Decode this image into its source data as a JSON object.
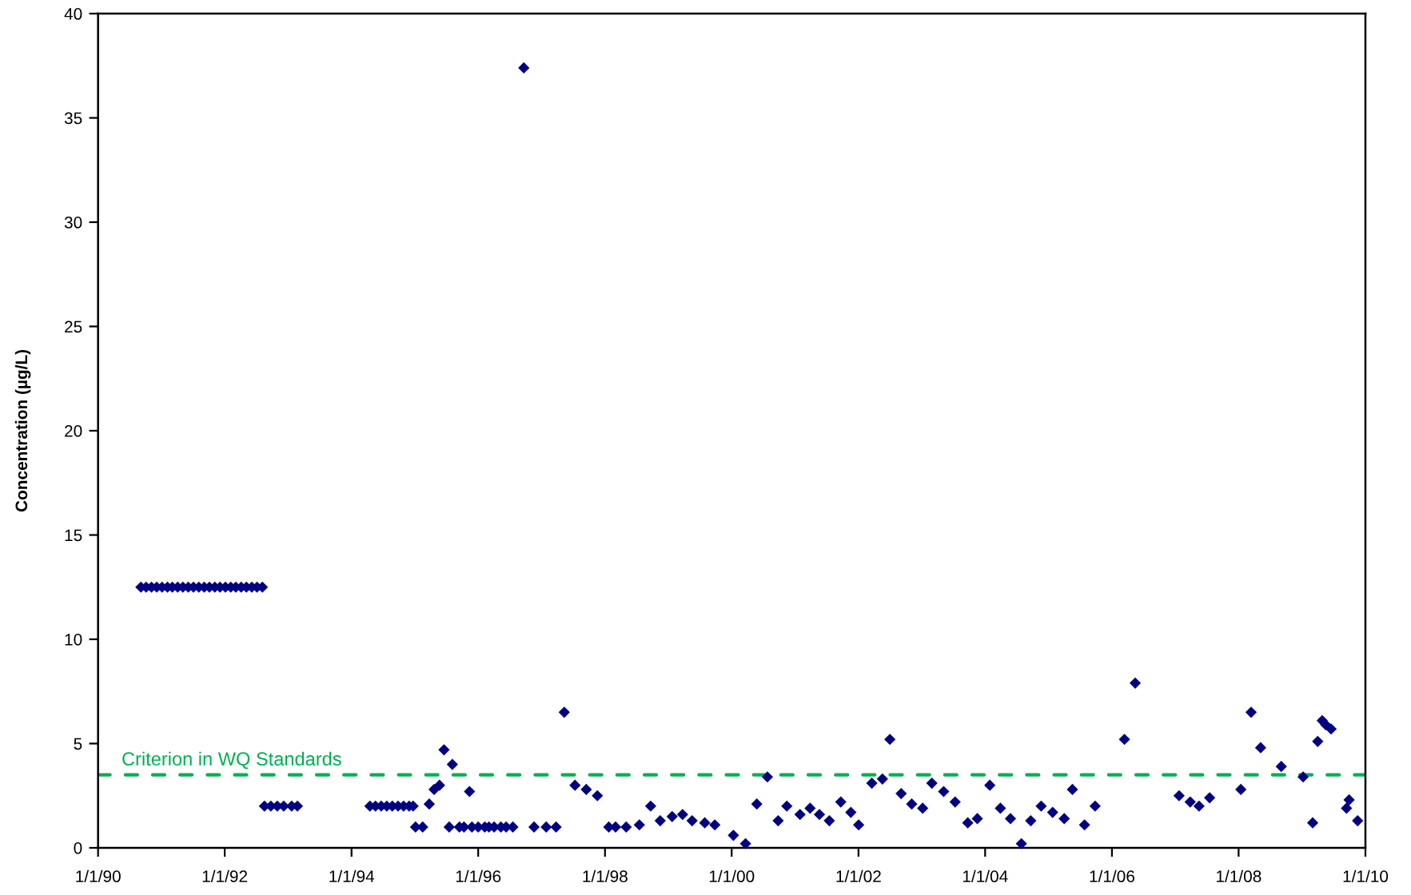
{
  "chart_data": {
    "type": "scatter",
    "ylabel": "Concentration (µg/L)",
    "marker": "diamond",
    "xlim": [
      "1990-01-01",
      "2010-01-01"
    ],
    "xticks": [
      {
        "value": "1990-01-01",
        "label": "1/1/90"
      },
      {
        "value": "1992-01-01",
        "label": "1/1/92"
      },
      {
        "value": "1994-01-01",
        "label": "1/1/94"
      },
      {
        "value": "1996-01-01",
        "label": "1/1/96"
      },
      {
        "value": "1998-01-01",
        "label": "1/1/98"
      },
      {
        "value": "2000-01-01",
        "label": "1/1/00"
      },
      {
        "value": "2002-01-01",
        "label": "1/1/02"
      },
      {
        "value": "2004-01-01",
        "label": "1/1/04"
      },
      {
        "value": "2006-01-01",
        "label": "1/1/06"
      },
      {
        "value": "2008-01-01",
        "label": "1/1/08"
      },
      {
        "value": "2010-01-01",
        "label": "1/1/10"
      }
    ],
    "ylim": [
      0,
      40
    ],
    "yticks": [
      0,
      5,
      10,
      15,
      20,
      25,
      30,
      35,
      40
    ],
    "ref_lines": [
      {
        "axis": "y",
        "value": 3.5,
        "label": "Criterion in WQ Standards",
        "color": "#00b050",
        "line_style": "dashed"
      }
    ],
    "series": [
      {
        "color": "#000080",
        "x": [
          "1990-09-05",
          "1990-10-05",
          "1990-11-05",
          "1990-12-05",
          "1991-01-05",
          "1991-02-05",
          "1991-03-05",
          "1991-04-05",
          "1991-05-05",
          "1991-06-05",
          "1991-07-05",
          "1991-08-05",
          "1991-09-05",
          "1991-10-05",
          "1991-11-05",
          "1991-12-05",
          "1992-01-05",
          "1992-02-05",
          "1992-03-05",
          "1992-04-05",
          "1992-05-05",
          "1992-06-05",
          "1992-07-05",
          "1992-08-05",
          "1992-08-17",
          "1992-09-23",
          "1992-10-30",
          "1992-12-06",
          "1993-01-21",
          "1993-02-23",
          "1994-04-17",
          "1994-05-19",
          "1994-06-21",
          "1994-07-23",
          "1994-08-24",
          "1994-09-26",
          "1994-10-28",
          "1994-11-29",
          "1994-12-22",
          "1995-01-05",
          "1995-02-15",
          "1995-03-25",
          "1995-04-22",
          "1995-05-23",
          "1995-06-18",
          "1995-07-18",
          "1995-08-05",
          "1995-09-15",
          "1995-10-11",
          "1995-11-12",
          "1995-11-26",
          "1996-01-01",
          "1996-02-08",
          "1996-03-03",
          "1996-04-02",
          "1996-05-11",
          "1996-06-10",
          "1996-07-19",
          "1996-09-20",
          "1996-11-18",
          "1997-01-27",
          "1997-03-25",
          "1997-05-11",
          "1997-07-12",
          "1997-09-15",
          "1997-11-18",
          "1998-01-23",
          "1998-03-03",
          "1998-05-03",
          "1998-07-18",
          "1998-09-21",
          "1998-11-15",
          "1999-01-23",
          "1999-03-24",
          "1999-05-18",
          "1999-07-30",
          "1999-09-26",
          "2000-01-11",
          "2000-03-21",
          "2000-05-25",
          "2000-07-25",
          "2000-09-25",
          "2000-11-14",
          "2001-01-29",
          "2001-03-28",
          "2001-05-21",
          "2001-07-17",
          "2001-09-21",
          "2001-11-18",
          "2002-01-02",
          "2002-03-19",
          "2002-05-19",
          "2002-07-01",
          "2002-09-04",
          "2002-11-04",
          "2003-01-06",
          "2003-02-28",
          "2003-05-07",
          "2003-07-12",
          "2003-09-23",
          "2003-11-17",
          "2004-01-28",
          "2004-03-29",
          "2004-05-26",
          "2004-07-28",
          "2004-09-20",
          "2004-11-19",
          "2005-01-24",
          "2005-04-01",
          "2005-05-18",
          "2005-07-27",
          "2005-09-26",
          "2006-03-14",
          "2006-05-15",
          "2007-01-23",
          "2007-03-28",
          "2007-05-18",
          "2007-07-18",
          "2008-01-14",
          "2008-03-13",
          "2008-05-07",
          "2008-09-03",
          "2009-01-07",
          "2009-03-03",
          "2009-04-01",
          "2009-04-27",
          "2009-05-17",
          "2009-06-17",
          "2009-09-14",
          "2009-09-29",
          "2009-11-17"
        ],
        "values": [
          12.5,
          12.5,
          12.5,
          12.5,
          12.5,
          12.5,
          12.5,
          12.5,
          12.5,
          12.5,
          12.5,
          12.5,
          12.5,
          12.5,
          12.5,
          12.5,
          12.5,
          12.5,
          12.5,
          12.5,
          12.5,
          12.5,
          12.5,
          12.5,
          2.0,
          2.0,
          2.0,
          2.0,
          2.0,
          2.0,
          2.0,
          2.0,
          2.0,
          2.0,
          2.0,
          2.0,
          2.0,
          2.0,
          2.0,
          1.0,
          1.0,
          2.1,
          2.8,
          3.0,
          4.7,
          1.0,
          4.0,
          1.0,
          1.0,
          2.7,
          1.0,
          1.0,
          1.0,
          1.0,
          1.0,
          1.0,
          1.0,
          1.0,
          37.4,
          1.0,
          1.0,
          1.0,
          6.5,
          3.0,
          2.8,
          2.5,
          1.0,
          1.0,
          1.0,
          1.1,
          2.0,
          1.3,
          1.5,
          1.6,
          1.3,
          1.2,
          1.1,
          0.6,
          0.2,
          2.1,
          3.4,
          1.3,
          2.0,
          1.6,
          1.9,
          1.6,
          1.3,
          2.2,
          1.7,
          1.1,
          3.1,
          3.3,
          5.2,
          2.6,
          2.1,
          1.9,
          3.1,
          2.7,
          2.2,
          1.2,
          1.4,
          3.0,
          1.9,
          1.4,
          0.2,
          1.3,
          2.0,
          1.7,
          1.4,
          2.8,
          1.1,
          2.0,
          5.2,
          7.9,
          2.5,
          2.2,
          2.0,
          2.4,
          2.8,
          6.5,
          4.8,
          3.9,
          3.4,
          1.2,
          5.1,
          6.1,
          5.9,
          5.7,
          1.9,
          2.3,
          1.3
        ]
      }
    ]
  }
}
